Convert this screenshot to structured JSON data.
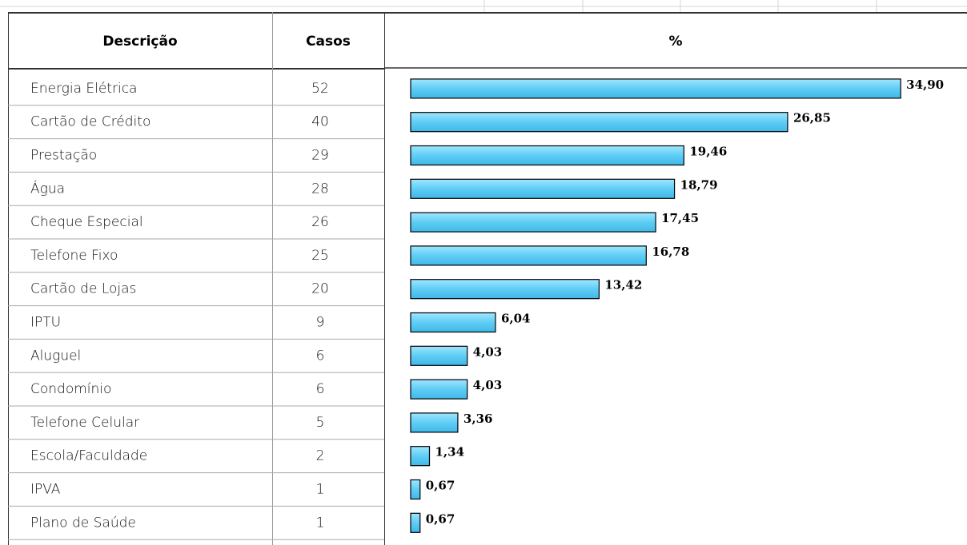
{
  "table": {
    "headers": [
      "Descrição",
      "Casos",
      "%"
    ],
    "rows": [
      [
        "Energia Elétrica",
        52
      ],
      [
        "Cartão de Crédito",
        40
      ],
      [
        "Prestação",
        29
      ],
      [
        "Água",
        28
      ],
      [
        "Cheque Especial",
        26
      ],
      [
        "Telefone Fixo",
        25
      ],
      [
        "Cartão de Lojas",
        20
      ],
      [
        "IPTU",
        9
      ],
      [
        "Aluguel",
        6
      ],
      [
        "Condomínio",
        6
      ],
      [
        "Telefone Celular",
        5
      ],
      [
        "Escola/Faculdade",
        2
      ],
      [
        "IPVA",
        1
      ],
      [
        "Plano de Saúde",
        1
      ]
    ]
  },
  "chart_data": {
    "type": "bar",
    "color": "#5fcdf5",
    "values": [
      34.9,
      26.85,
      19.46,
      18.79,
      17.45,
      16.78,
      13.42,
      6.04,
      4.03,
      4.03,
      3.36,
      1.34,
      0.67,
      0.67
    ],
    "value_labels": [
      "34,90",
      "26,85",
      "19,46",
      "18,79",
      "17,45",
      "16,78",
      "13,42",
      "6,04",
      "4,03",
      "4,03",
      "3,36",
      "1,34",
      "0,67",
      "0,67"
    ]
  }
}
